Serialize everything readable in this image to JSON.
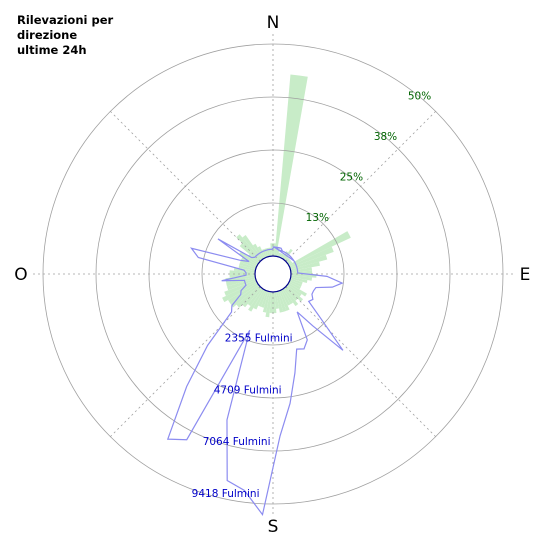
{
  "chart_data": {
    "type": "polar-bar",
    "title_lines": [
      "Rilevazioni per",
      "direzione",
      "ultime 24h"
    ],
    "directions": {
      "north": "N",
      "east": "E",
      "south": "S",
      "west": "O"
    },
    "percent_labels": [
      "13%",
      "25%",
      "38%",
      "50%"
    ],
    "percent_ticks": [
      12.5,
      25,
      37.5,
      50
    ],
    "count_labels": [
      "2355 Fulmini",
      "4709 Fulmini",
      "7064 Fulmini",
      "9418 Fulmini"
    ],
    "count_ticks": [
      2355,
      4709,
      7064,
      9418
    ],
    "sector_width_deg": 5,
    "percentages": [
      0,
      43,
      0,
      0,
      0,
      0,
      0,
      0,
      0,
      0,
      0,
      0,
      16,
      11,
      9,
      7,
      5,
      5,
      6,
      5,
      4,
      3,
      3,
      3,
      5,
      4,
      5,
      4,
      5,
      4,
      4,
      5,
      5,
      5,
      4,
      5,
      5,
      6,
      5,
      4,
      4,
      5,
      6,
      5,
      6,
      7,
      8,
      8,
      9,
      8,
      7,
      7,
      7,
      6,
      6,
      5,
      4,
      4,
      4,
      4,
      5,
      3,
      6,
      8,
      7,
      4,
      3,
      2,
      2,
      2,
      2,
      3,
      3,
      2,
      2,
      1,
      1,
      1,
      2,
      3,
      1,
      1,
      1,
      1
    ],
    "counts": [
      400,
      400,
      400,
      400,
      300,
      300,
      300,
      300,
      300,
      300,
      300,
      300,
      300,
      300,
      300,
      300,
      300,
      300,
      1600,
      2300,
      1900,
      1200,
      1150,
      1150,
      1300,
      1200,
      2000,
      3800,
      2100,
      1200,
      2500,
      2800,
      2700,
      3700,
      5000,
      6400,
      9900,
      8900,
      8600,
      6000,
      1900,
      7500,
      7900,
      5500,
      3500,
      1700,
      1500,
      900,
      800,
      500,
      500,
      500,
      1500,
      400,
      400,
      500,
      2600,
      3000,
      800,
      400,
      2100,
      400,
      300,
      300,
      300,
      300,
      300,
      300,
      300,
      300,
      300,
      300,
      400,
      400,
      300,
      300,
      300,
      300,
      300,
      300,
      300,
      300,
      300,
      300
    ],
    "colors": {
      "bars": "#c8ecc8",
      "count_line": "#8c8cf0",
      "percent_text": "#006400",
      "count_text": "#0000c8",
      "grid": "#a0a0a0",
      "center_circle": "#00008c"
    }
  }
}
